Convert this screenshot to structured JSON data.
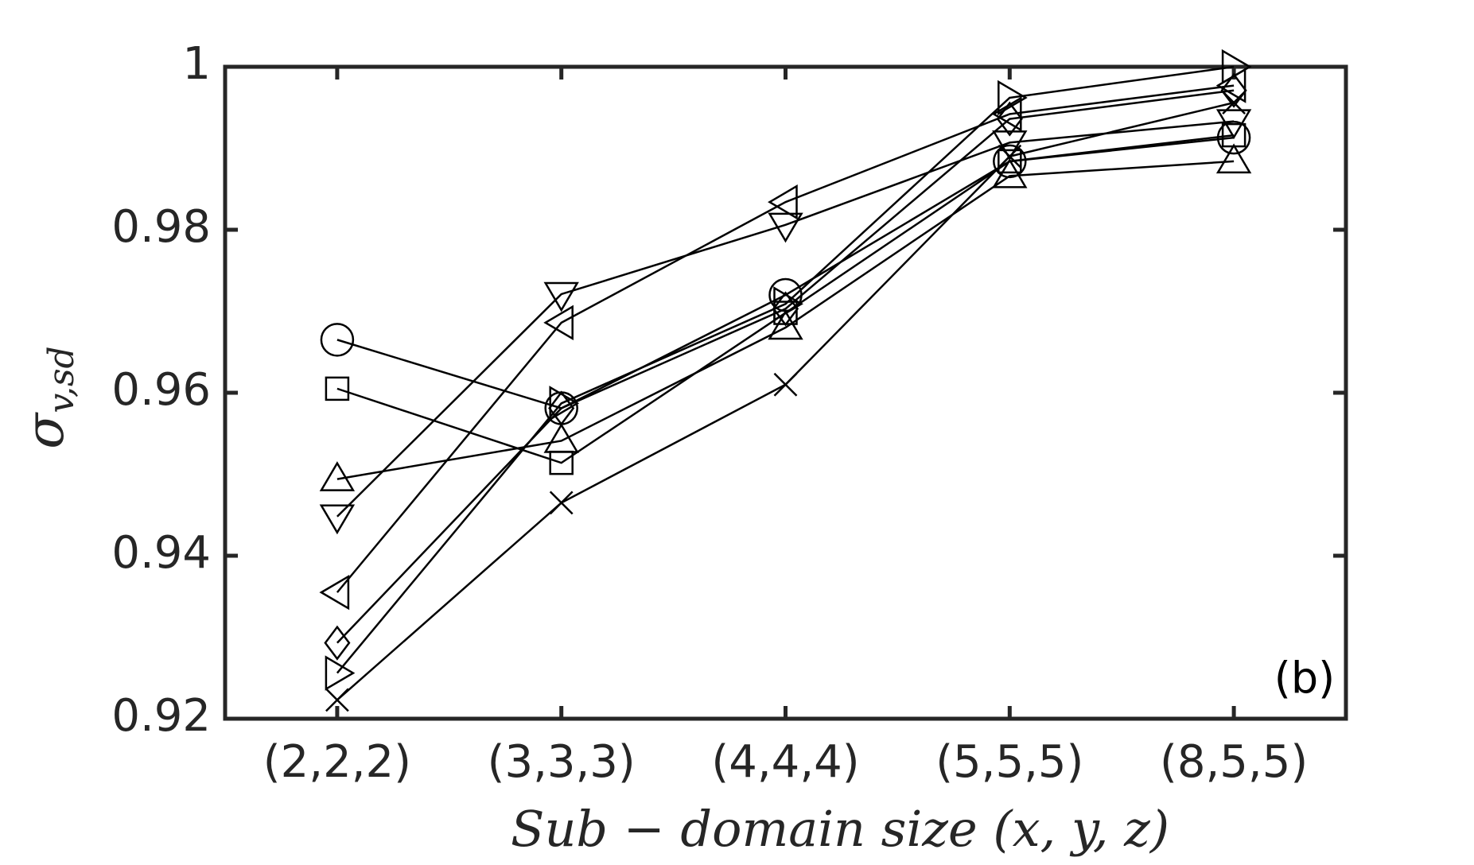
{
  "chart_data": {
    "type": "line",
    "xlabel": "Sub − domain size (x, y, z)",
    "ylabel": "σ",
    "ylabel_subscript": "v,sd",
    "annotation": "(b)",
    "categories": [
      "(2,2,2)",
      "(3,3,3)",
      "(4,4,4)",
      "(5,5,5)",
      "(8,5,5)"
    ],
    "ylim": [
      0.92,
      1
    ],
    "yticks": [
      0.92,
      0.94,
      0.96,
      0.98,
      1
    ],
    "series": [
      {
        "marker": "circle",
        "color": "#000000",
        "values": [
          0.9665,
          0.9581,
          0.972,
          0.9884,
          0.9913
        ]
      },
      {
        "marker": "square",
        "color": "#000000",
        "values": [
          0.9605,
          0.9514,
          0.9698,
          0.9884,
          0.9916
        ]
      },
      {
        "marker": "triangle-up",
        "color": "#000000",
        "values": [
          0.9494,
          0.9541,
          0.968,
          0.9866,
          0.9884
        ]
      },
      {
        "marker": "triangle-down",
        "color": "#000000",
        "values": [
          0.9448,
          0.9721,
          0.9806,
          0.9907,
          0.9933
        ]
      },
      {
        "marker": "triangle-left",
        "color": "#000000",
        "values": [
          0.9355,
          0.9686,
          0.9834,
          0.9942,
          0.9977
        ]
      },
      {
        "marker": "diamond",
        "color": "#000000",
        "values": [
          0.9293,
          0.9581,
          0.9703,
          0.9936,
          0.9971
        ]
      },
      {
        "marker": "triangle-right",
        "color": "#000000",
        "values": [
          0.9256,
          0.9587,
          0.9709,
          0.9962,
          1
        ]
      },
      {
        "marker": "x",
        "color": "#000000",
        "values": [
          0.9223,
          0.9465,
          0.961,
          0.989,
          0.9956
        ]
      }
    ]
  }
}
